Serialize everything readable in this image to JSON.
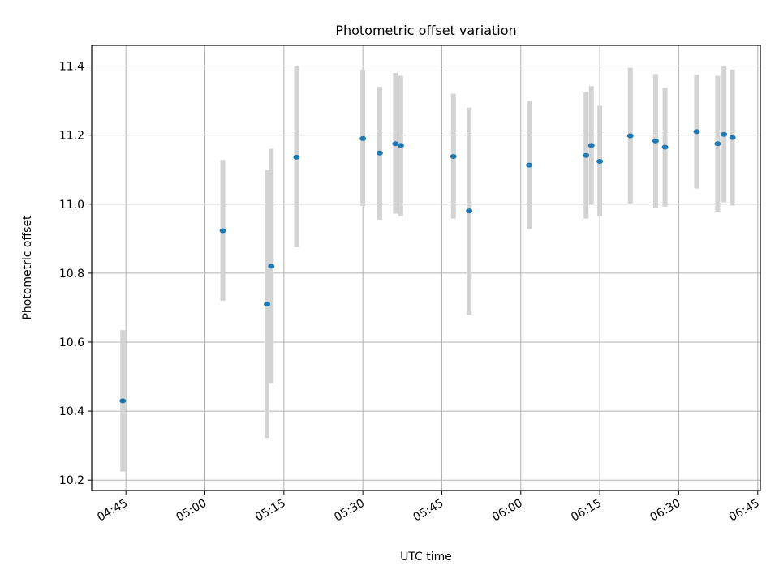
{
  "chart_data": {
    "type": "scatter",
    "title": "Photometric offset variation",
    "xlabel": "UTC time",
    "ylabel": "Photometric offset",
    "xlim": [
      "04:38:30",
      "06:45:30"
    ],
    "ylim": [
      10.17,
      11.46
    ],
    "x_ticks": [
      "04:45",
      "05:00",
      "05:15",
      "05:30",
      "05:45",
      "06:00",
      "06:15",
      "06:30",
      "06:45"
    ],
    "y_ticks": [
      "10.2",
      "10.4",
      "10.6",
      "10.8",
      "11.0",
      "11.2",
      "11.4"
    ],
    "grid": true,
    "series": [
      {
        "marker_color": "#1f77b4",
        "errorbar_color": "#d3d3d3",
        "points": [
          {
            "time": "04:44:24",
            "y": 10.43,
            "err_low": 10.225,
            "err_high": 10.635
          },
          {
            "time": "05:03:24",
            "y": 10.923,
            "err_low": 10.72,
            "err_high": 11.128
          },
          {
            "time": "05:11:48",
            "y": 10.71,
            "err_low": 10.322,
            "err_high": 11.098
          },
          {
            "time": "05:12:36",
            "y": 10.82,
            "err_low": 10.48,
            "err_high": 11.16
          },
          {
            "time": "05:17:24",
            "y": 11.136,
            "err_low": 10.875,
            "err_high": 11.4
          },
          {
            "time": "05:30:00",
            "y": 11.19,
            "err_low": 10.995,
            "err_high": 11.39
          },
          {
            "time": "05:33:12",
            "y": 11.148,
            "err_low": 10.955,
            "err_high": 11.34
          },
          {
            "time": "05:36:12",
            "y": 11.175,
            "err_low": 10.972,
            "err_high": 11.38
          },
          {
            "time": "05:37:12",
            "y": 11.17,
            "err_low": 10.965,
            "err_high": 11.372
          },
          {
            "time": "05:47:12",
            "y": 11.138,
            "err_low": 10.958,
            "err_high": 11.32
          },
          {
            "time": "05:50:12",
            "y": 10.98,
            "err_low": 10.68,
            "err_high": 11.28
          },
          {
            "time": "06:01:36",
            "y": 11.113,
            "err_low": 10.928,
            "err_high": 11.3
          },
          {
            "time": "06:12:24",
            "y": 11.141,
            "err_low": 10.958,
            "err_high": 11.325
          },
          {
            "time": "06:13:24",
            "y": 11.17,
            "err_low": 10.998,
            "err_high": 11.342
          },
          {
            "time": "06:15:00",
            "y": 11.124,
            "err_low": 10.965,
            "err_high": 11.285
          },
          {
            "time": "06:20:48",
            "y": 11.198,
            "err_low": 11.0,
            "err_high": 11.395
          },
          {
            "time": "06:25:36",
            "y": 11.183,
            "err_low": 10.99,
            "err_high": 11.377
          },
          {
            "time": "06:27:24",
            "y": 11.165,
            "err_low": 10.993,
            "err_high": 11.337
          },
          {
            "time": "06:33:24",
            "y": 11.21,
            "err_low": 11.045,
            "err_high": 11.375
          },
          {
            "time": "06:37:24",
            "y": 11.175,
            "err_low": 10.978,
            "err_high": 11.372
          },
          {
            "time": "06:38:36",
            "y": 11.202,
            "err_low": 11.005,
            "err_high": 11.4
          },
          {
            "time": "06:40:12",
            "y": 11.193,
            "err_low": 10.996,
            "err_high": 11.39
          }
        ]
      }
    ]
  }
}
